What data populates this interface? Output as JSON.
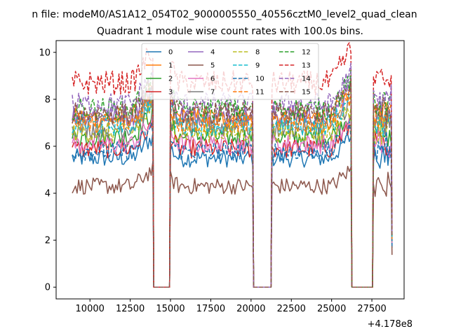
{
  "figure": {
    "suptitle": "n file: modeM0/AS1A12_054T02_9000005550_40556cztM0_level2_quad_clean"
  },
  "chart_data": {
    "type": "line",
    "title": "Quadrant 1 module wise count rates with 100.0s bins.",
    "xlabel": "",
    "ylabel": "",
    "x_offset_label": "+4.178e8",
    "xlim": [
      7900,
      29500
    ],
    "ylim": [
      -0.5,
      10.5
    ],
    "xticks": [
      10000,
      12500,
      15000,
      17500,
      20000,
      22500,
      25000,
      27500
    ],
    "xtick_labels": [
      "10000",
      "12500",
      "15000",
      "17500",
      "20000",
      "22500",
      "25000",
      "27500"
    ],
    "yticks": [
      0,
      2,
      4,
      6,
      8,
      10
    ],
    "ytick_labels": [
      "0",
      "2",
      "4",
      "6",
      "8",
      "10"
    ],
    "grid": false,
    "legend": {
      "placement": "upper-center",
      "columns": 4
    },
    "segments": [
      [
        8900,
        13900
      ],
      [
        15000,
        20100
      ],
      [
        21300,
        26200
      ],
      [
        27600,
        28700
      ]
    ],
    "gap_value": 0,
    "series": [
      {
        "name": "0",
        "color": "#1f77b4",
        "dash": "solid",
        "level": 5.5
      },
      {
        "name": "1",
        "color": "#ff7f0e",
        "dash": "solid",
        "level": 7.2
      },
      {
        "name": "2",
        "color": "#2ca02c",
        "dash": "solid",
        "level": 6.4
      },
      {
        "name": "3",
        "color": "#d62728",
        "dash": "solid",
        "level": 5.9
      },
      {
        "name": "4",
        "color": "#9467bd",
        "dash": "solid",
        "level": 7.3
      },
      {
        "name": "5",
        "color": "#8c564b",
        "dash": "solid",
        "level": 4.3
      },
      {
        "name": "6",
        "color": "#e377c2",
        "dash": "solid",
        "level": 6.1
      },
      {
        "name": "7",
        "color": "#7f7f7f",
        "dash": "solid",
        "level": 6.8
      },
      {
        "name": "8",
        "color": "#bcbd22",
        "dash": "dashed",
        "level": 6.6
      },
      {
        "name": "9",
        "color": "#17becf",
        "dash": "dashed",
        "level": 6.9
      },
      {
        "name": "10",
        "color": "#1f77b4",
        "dash": "dashed",
        "level": 5.8
      },
      {
        "name": "11",
        "color": "#ff7f0e",
        "dash": "dashed",
        "level": 7.0
      },
      {
        "name": "12",
        "color": "#2ca02c",
        "dash": "dashed",
        "level": 7.6
      },
      {
        "name": "13",
        "color": "#d62728",
        "dash": "dashed",
        "level": 8.7
      },
      {
        "name": "14",
        "color": "#9467bd",
        "dash": "dashed",
        "level": 7.8
      },
      {
        "name": "15",
        "color": "#8c564b",
        "dash": "dashed",
        "level": 7.4
      }
    ]
  }
}
